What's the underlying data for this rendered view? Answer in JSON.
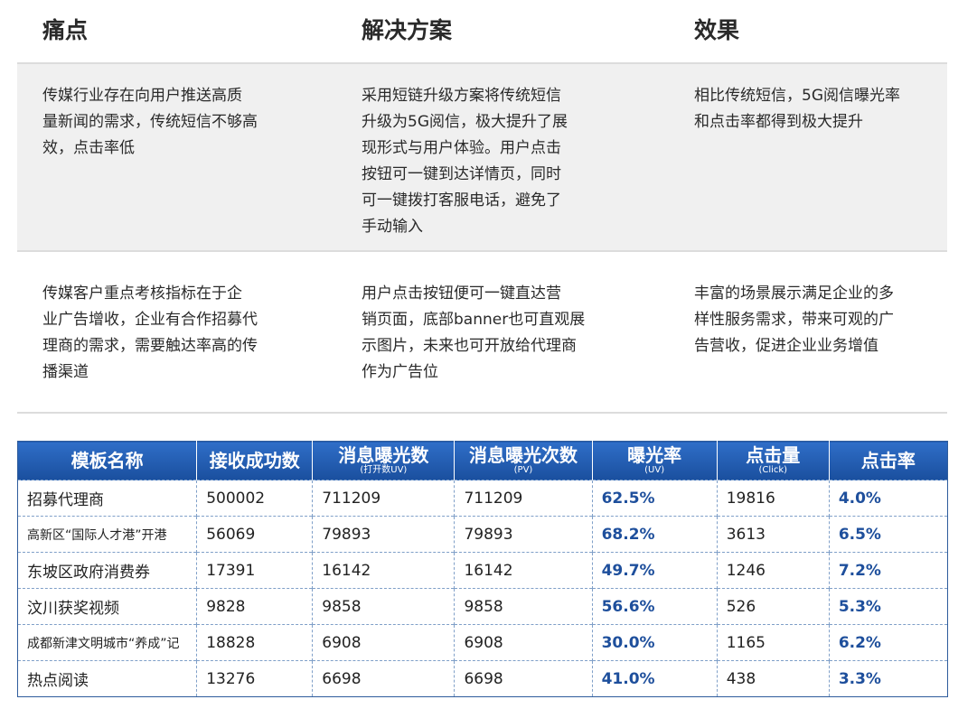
{
  "headers": {
    "pain": "痛点",
    "solution": "解决方案",
    "effect": "效果"
  },
  "rows": [
    {
      "pain": [
        "传媒行业存在向用户推送高质",
        "量新闻的需求，传统短信不够高",
        "效，点击率低"
      ],
      "solution": [
        "采用短链升级方案将传统短信",
        "升级为5G阅信，极大提升了展",
        "现形式与用户体验。用户点击",
        "按钮可一键到达详情页，同时",
        "可一键拨打客服电话，避免了",
        "手动输入"
      ],
      "effect": [
        "相比传统短信，5G阅信曝光率",
        "和点击率都得到极大提升"
      ]
    },
    {
      "pain": [
        "传媒客户重点考核指标在于企",
        "业广告增收，企业有合作招募代",
        "理商的需求，需要触达率高的传",
        "播渠道"
      ],
      "solution": [
        "用户点击按钮便可一键直达营",
        "销页面，底部banner也可直观展",
        "示图片，未来也可开放给代理商",
        "作为广告位"
      ],
      "effect": [
        "丰富的场景展示满足企业的多",
        "样性服务需求，带来可观的广",
        "告营收，促进企业业务增值"
      ]
    }
  ],
  "table": {
    "columns": [
      {
        "label": "模板名称",
        "sub": ""
      },
      {
        "label": "接收成功数",
        "sub": ""
      },
      {
        "label": "消息曝光数",
        "sub": "(打开数UV)"
      },
      {
        "label": "消息曝光次数",
        "sub": "(PV)"
      },
      {
        "label": "曝光率",
        "sub": "(UV)"
      },
      {
        "label": "点击量",
        "sub": "(Click)"
      },
      {
        "label": "点击率",
        "sub": ""
      }
    ],
    "rows": [
      {
        "name": "招募代理商",
        "received": "500002",
        "uv": "711209",
        "pv": "711209",
        "exposure_rate": "62.5%",
        "clicks": "19816",
        "click_rate": "4.0%"
      },
      {
        "name": "高新区“国际人才港”开港",
        "received": "56069",
        "uv": "79893",
        "pv": "79893",
        "exposure_rate": "68.2%",
        "clicks": "3613",
        "click_rate": "6.5%"
      },
      {
        "name": "东坡区政府消费券",
        "received": "17391",
        "uv": "16142",
        "pv": "16142",
        "exposure_rate": "49.7%",
        "clicks": "1246",
        "click_rate": "7.2%"
      },
      {
        "name": "汶川获奖视频",
        "received": "9828",
        "uv": "9858",
        "pv": "9858",
        "exposure_rate": "56.6%",
        "clicks": "526",
        "click_rate": "5.3%"
      },
      {
        "name": "成都新津文明城市“养成”记",
        "received": "18828",
        "uv": "6908",
        "pv": "6908",
        "exposure_rate": "30.0%",
        "clicks": "1165",
        "click_rate": "6.2%"
      },
      {
        "name": "热点阅读",
        "received": "13276",
        "uv": "6698",
        "pv": "6698",
        "exposure_rate": "41.0%",
        "clicks": "438",
        "click_rate": "3.3%"
      }
    ]
  }
}
